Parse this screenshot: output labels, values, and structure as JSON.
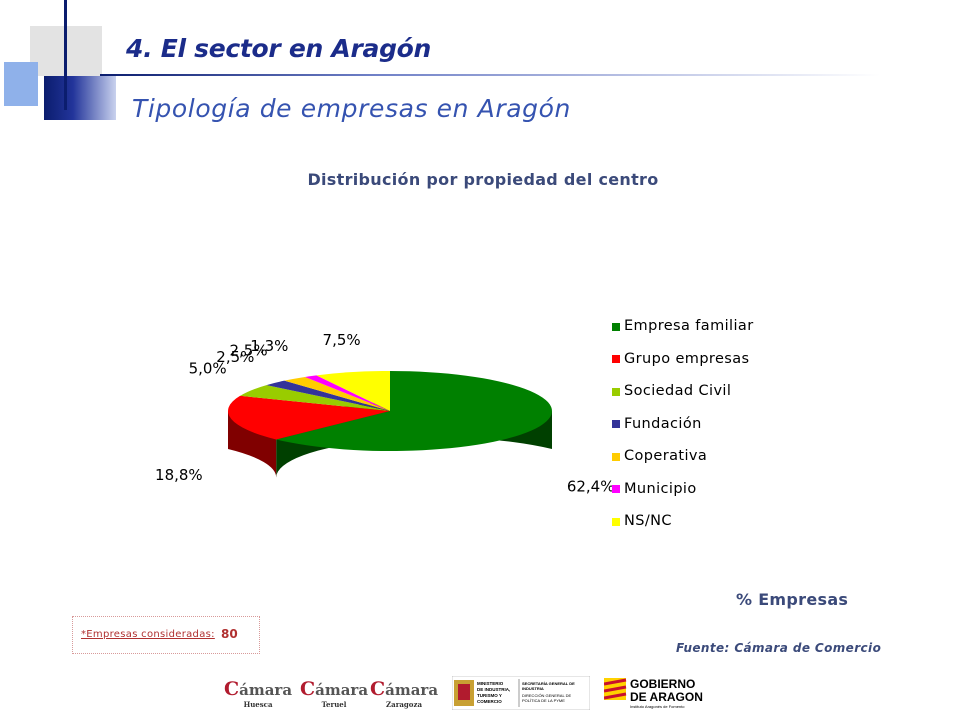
{
  "header": {
    "title": "4. El sector en Aragón",
    "subtitle": "Tipología de empresas en Aragón"
  },
  "chart_data": {
    "type": "pie",
    "title": "Distribución por propiedad del centro",
    "categories": [
      "Empresa familiar",
      "Grupo empresas",
      "Sociedad Civil",
      "Fundación",
      "Coperativa",
      "Municipio",
      "NS/NC"
    ],
    "values": [
      62.4,
      18.8,
      5.0,
      2.5,
      2.5,
      1.3,
      7.5
    ],
    "data_labels": [
      "62,4%",
      "18,8%",
      "5,0%",
      "2,5%",
      "2,5%",
      "1,3%",
      "7,5%"
    ],
    "colors": [
      "#008000",
      "#ff0000",
      "#99cc00",
      "#333399",
      "#ffcc00",
      "#ff00ff",
      "#ffff00"
    ],
    "style": "3d",
    "legend_position": "right",
    "unit_label": "% Empresas"
  },
  "legend_items": [
    {
      "label": "Empresa familiar",
      "color": "#008000"
    },
    {
      "label": "Grupo empresas",
      "color": "#ff0000"
    },
    {
      "label": "Sociedad Civil",
      "color": "#99cc00"
    },
    {
      "label": "Fundación",
      "color": "#333399"
    },
    {
      "label": "Coperativa",
      "color": "#ffcc00"
    },
    {
      "label": "Municipio",
      "color": "#ff00ff"
    },
    {
      "label": "NS/NC",
      "color": "#ffff00"
    }
  ],
  "note": {
    "label": "*Empresas consideradas:",
    "value": "80"
  },
  "source": "Fuente: Cámara de Comercio",
  "footer_logos": {
    "camaras": [
      {
        "brand_mark": "C",
        "brand": "ámara",
        "city": "Huesca"
      },
      {
        "brand_mark": "C",
        "brand": "ámara",
        "city": "Teruel"
      },
      {
        "brand_mark": "C",
        "brand": "ámara",
        "city": "Zaragoza"
      }
    ],
    "ministerio": {
      "line1": "MINISTERIO DE INDUSTRIA, TURISMO Y COMERCIO",
      "line2": "SECRETARÍA GENERAL DE INDUSTRIA",
      "line3": "DIRECCIÓN GENERAL DE POLÍTICA DE LA PYME"
    },
    "gobierno": {
      "line1": "GOBIERNO",
      "line2": "DE ARAGON",
      "line3": "Instituto Aragonés de Fomento"
    }
  }
}
